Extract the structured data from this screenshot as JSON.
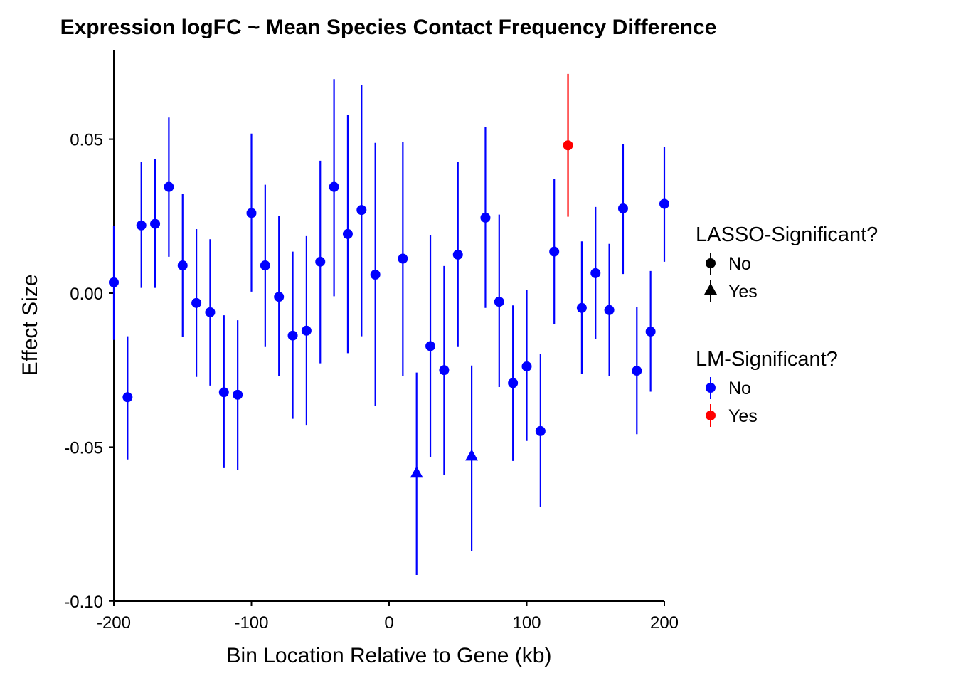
{
  "chart_data": {
    "type": "scatter",
    "title": "Expression logFC ~ Mean Species Contact Frequency Difference",
    "xlabel": "Bin Location Relative to Gene (kb)",
    "ylabel": "Effect Size",
    "xlim": [
      -200,
      200
    ],
    "ylim": [
      -0.1,
      0.08
    ],
    "x_ticks": [
      -200,
      -100,
      0,
      100,
      200
    ],
    "x_tick_labels": [
      "-200",
      "-100",
      "0",
      "100",
      "200"
    ],
    "y_ticks": [
      -0.1,
      -0.05,
      0,
      0.05
    ],
    "y_tick_labels": [
      "-0.10",
      "-0.05",
      "0.00",
      "0.05"
    ],
    "grid": false,
    "error_bars": true,
    "legend_position": "right",
    "legends": [
      {
        "title": "LASSO-Significant?",
        "items": [
          {
            "label": "No",
            "shape": "circle"
          },
          {
            "label": "Yes",
            "shape": "triangle"
          }
        ]
      },
      {
        "title": "LM-Significant?",
        "items": [
          {
            "label": "No",
            "color": "#0000ff"
          },
          {
            "label": "Yes",
            "color": "#ff0000"
          }
        ]
      }
    ],
    "colors": {
      "No": "#0000ff",
      "Yes": "#ff0000"
    },
    "points": [
      {
        "x": -200,
        "y": 0.0035,
        "lo": -0.0152,
        "hi": 0.0218,
        "lasso": "No",
        "lm": "No"
      },
      {
        "x": -190,
        "y": -0.0338,
        "lo": -0.054,
        "hi": -0.014,
        "lasso": "No",
        "lm": "No"
      },
      {
        "x": -180,
        "y": 0.022,
        "lo": 0.0017,
        "hi": 0.0425,
        "lasso": "No",
        "lm": "No"
      },
      {
        "x": -170,
        "y": 0.0225,
        "lo": 0.0017,
        "hi": 0.0435,
        "lasso": "No",
        "lm": "No"
      },
      {
        "x": -160,
        "y": 0.0345,
        "lo": 0.0118,
        "hi": 0.057,
        "lasso": "No",
        "lm": "No"
      },
      {
        "x": -150,
        "y": 0.009,
        "lo": -0.0142,
        "hi": 0.0322,
        "lasso": "No",
        "lm": "No"
      },
      {
        "x": -140,
        "y": -0.0032,
        "lo": -0.0272,
        "hi": 0.0208,
        "lasso": "No",
        "lm": "No"
      },
      {
        "x": -130,
        "y": -0.0062,
        "lo": -0.03,
        "hi": 0.0175,
        "lasso": "No",
        "lm": "No"
      },
      {
        "x": -120,
        "y": -0.0322,
        "lo": -0.0568,
        "hi": -0.0072,
        "lasso": "No",
        "lm": "No"
      },
      {
        "x": -110,
        "y": -0.033,
        "lo": -0.0575,
        "hi": -0.0088,
        "lasso": "No",
        "lm": "No"
      },
      {
        "x": -100,
        "y": 0.026,
        "lo": 0.0005,
        "hi": 0.0518,
        "lasso": "No",
        "lm": "No"
      },
      {
        "x": -90,
        "y": 0.009,
        "lo": -0.0175,
        "hi": 0.0352,
        "lasso": "No",
        "lm": "No"
      },
      {
        "x": -80,
        "y": -0.0012,
        "lo": -0.027,
        "hi": 0.025,
        "lasso": "No",
        "lm": "No"
      },
      {
        "x": -70,
        "y": -0.0138,
        "lo": -0.0408,
        "hi": 0.0135,
        "lasso": "No",
        "lm": "No"
      },
      {
        "x": -60,
        "y": -0.0122,
        "lo": -0.043,
        "hi": 0.0185,
        "lasso": "No",
        "lm": "No"
      },
      {
        "x": -50,
        "y": 0.0102,
        "lo": -0.0228,
        "hi": 0.043,
        "lasso": "No",
        "lm": "No"
      },
      {
        "x": -40,
        "y": 0.0345,
        "lo": -0.001,
        "hi": 0.0695,
        "lasso": "No",
        "lm": "No"
      },
      {
        "x": -30,
        "y": 0.0192,
        "lo": -0.0195,
        "hi": 0.058,
        "lasso": "No",
        "lm": "No"
      },
      {
        "x": -20,
        "y": 0.027,
        "lo": -0.014,
        "hi": 0.0675,
        "lasso": "No",
        "lm": "No"
      },
      {
        "x": -10,
        "y": 0.006,
        "lo": -0.0365,
        "hi": 0.0488,
        "lasso": "No",
        "lm": "No"
      },
      {
        "x": 10,
        "y": 0.0112,
        "lo": -0.027,
        "hi": 0.0492,
        "lasso": "No",
        "lm": "No"
      },
      {
        "x": 20,
        "y": -0.0585,
        "lo": -0.0915,
        "hi": -0.0258,
        "lasso": "Yes",
        "lm": "No"
      },
      {
        "x": 30,
        "y": -0.0172,
        "lo": -0.0532,
        "hi": 0.0188,
        "lasso": "No",
        "lm": "No"
      },
      {
        "x": 40,
        "y": -0.025,
        "lo": -0.059,
        "hi": 0.0088,
        "lasso": "No",
        "lm": "No"
      },
      {
        "x": 50,
        "y": 0.0125,
        "lo": -0.0175,
        "hi": 0.0425,
        "lasso": "No",
        "lm": "No"
      },
      {
        "x": 60,
        "y": -0.053,
        "lo": -0.0838,
        "hi": -0.0235,
        "lasso": "Yes",
        "lm": "No"
      },
      {
        "x": 70,
        "y": 0.0245,
        "lo": -0.0048,
        "hi": 0.054,
        "lasso": "No",
        "lm": "No"
      },
      {
        "x": 80,
        "y": -0.0028,
        "lo": -0.0305,
        "hi": 0.0255,
        "lasso": "No",
        "lm": "No"
      },
      {
        "x": 90,
        "y": -0.0292,
        "lo": -0.0545,
        "hi": -0.004,
        "lasso": "No",
        "lm": "No"
      },
      {
        "x": 100,
        "y": -0.0238,
        "lo": -0.048,
        "hi": 0.001,
        "lasso": "No",
        "lm": "No"
      },
      {
        "x": 110,
        "y": -0.0448,
        "lo": -0.0695,
        "hi": -0.0198,
        "lasso": "No",
        "lm": "No"
      },
      {
        "x": 120,
        "y": 0.0135,
        "lo": -0.01,
        "hi": 0.0372,
        "lasso": "No",
        "lm": "No"
      },
      {
        "x": 130,
        "y": 0.048,
        "lo": 0.0248,
        "hi": 0.0712,
        "lasso": "No",
        "lm": "Yes"
      },
      {
        "x": 140,
        "y": -0.0048,
        "lo": -0.0262,
        "hi": 0.0168,
        "lasso": "No",
        "lm": "No"
      },
      {
        "x": 150,
        "y": 0.0065,
        "lo": -0.015,
        "hi": 0.028,
        "lasso": "No",
        "lm": "No"
      },
      {
        "x": 160,
        "y": -0.0055,
        "lo": -0.027,
        "hi": 0.016,
        "lasso": "No",
        "lm": "No"
      },
      {
        "x": 170,
        "y": 0.0275,
        "lo": 0.0062,
        "hi": 0.0485,
        "lasso": "No",
        "lm": "No"
      },
      {
        "x": 180,
        "y": -0.0252,
        "lo": -0.0458,
        "hi": -0.0045,
        "lasso": "No",
        "lm": "No"
      },
      {
        "x": 190,
        "y": -0.0125,
        "lo": -0.032,
        "hi": 0.0072,
        "lasso": "No",
        "lm": "No"
      },
      {
        "x": 200,
        "y": 0.029,
        "lo": 0.0102,
        "hi": 0.0475,
        "lasso": "No",
        "lm": "No"
      }
    ]
  }
}
